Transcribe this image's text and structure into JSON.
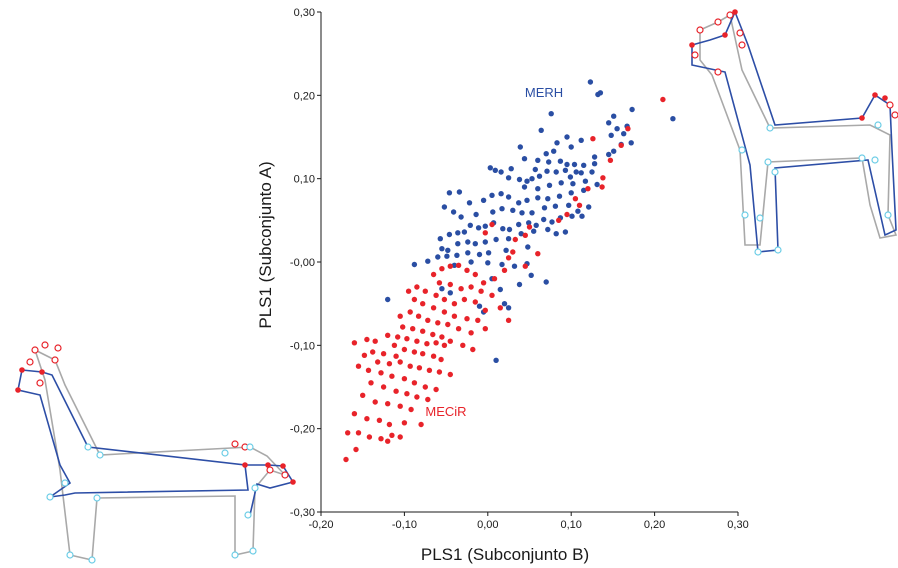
{
  "colors": {
    "merh": "#2a4ea3",
    "mecir": "#e8232a",
    "skeleton_gray": "#a9a9a9",
    "skeleton_blue": "#2d4ea6",
    "landmark_cyan": "#6ccde6"
  },
  "chart_data": {
    "type": "scatter",
    "xlabel": "PLS1 (Subconjunto B)",
    "ylabel": "PLS1 (Subconjunto A)",
    "xlim": [
      -0.2,
      0.3
    ],
    "ylim": [
      -0.3,
      0.3
    ],
    "x_ticks": [
      -0.2,
      -0.1,
      0.0,
      0.1,
      0.2,
      0.3
    ],
    "y_ticks": [
      -0.3,
      -0.2,
      -0.1,
      0.0,
      0.1,
      0.2,
      0.3
    ],
    "x_tick_labels": [
      "-0,20",
      "-0,10",
      "0,00",
      "0,10",
      "0,20",
      "0,30"
    ],
    "y_tick_labels": [
      "-0,30",
      "-0,20",
      "-0,10",
      "-0,00",
      "0,10",
      "0,20",
      "0,30"
    ],
    "grid": false,
    "annotations": [
      {
        "text": "MERH",
        "x": 0.067,
        "y": 0.202,
        "series": "MERH"
      },
      {
        "text": "MECiR",
        "x": -0.05,
        "y": -0.171,
        "series": "MECiR"
      }
    ],
    "series": [
      {
        "name": "MERH",
        "color": "#2a4ea3",
        "points": [
          [
            0.123,
            0.216
          ],
          [
            0.135,
            0.203
          ],
          [
            0.132,
            0.201
          ],
          [
            0.076,
            0.178
          ],
          [
            0.064,
            0.158
          ],
          [
            0.173,
            0.183
          ],
          [
            0.222,
            0.172
          ],
          [
            0.151,
            0.175
          ],
          [
            0.145,
            0.167
          ],
          [
            0.167,
            0.163
          ],
          [
            0.155,
            0.16
          ],
          [
            0.163,
            0.154
          ],
          [
            0.148,
            0.152
          ],
          [
            0.172,
            0.143
          ],
          [
            0.16,
            0.141
          ],
          [
            0.151,
            0.133
          ],
          [
            0.145,
            0.129
          ],
          [
            0.128,
            0.126
          ],
          [
            0.112,
            0.146
          ],
          [
            0.1,
            0.138
          ],
          [
            0.095,
            0.15
          ],
          [
            0.083,
            0.143
          ],
          [
            0.079,
            0.133
          ],
          [
            0.07,
            0.13
          ],
          [
            0.039,
            0.138
          ],
          [
            0.044,
            0.124
          ],
          [
            0.06,
            0.122
          ],
          [
            0.057,
            0.111
          ],
          [
            0.073,
            0.12
          ],
          [
            0.087,
            0.121
          ],
          [
            0.095,
            0.117
          ],
          [
            0.104,
            0.117
          ],
          [
            0.115,
            0.116
          ],
          [
            0.128,
            0.118
          ],
          [
            0.125,
            0.108
          ],
          [
            0.112,
            0.107
          ],
          [
            0.106,
            0.108
          ],
          [
            0.099,
            0.102
          ],
          [
            0.093,
            0.11
          ],
          [
            0.082,
            0.108
          ],
          [
            0.071,
            0.109
          ],
          [
            0.062,
            0.103
          ],
          [
            0.053,
            0.1
          ],
          [
            0.047,
            0.097
          ],
          [
            0.038,
            0.099
          ],
          [
            0.025,
            0.101
          ],
          [
            0.016,
            0.108
          ],
          [
            0.009,
            0.11
          ],
          [
            0.003,
            0.113
          ],
          [
            0.028,
            0.112
          ],
          [
            0.044,
            0.09
          ],
          [
            0.06,
            0.088
          ],
          [
            0.074,
            0.092
          ],
          [
            0.088,
            0.095
          ],
          [
            0.102,
            0.094
          ],
          [
            0.117,
            0.097
          ],
          [
            0.131,
            0.093
          ],
          [
            0.115,
            0.086
          ],
          [
            0.1,
            0.083
          ],
          [
            0.086,
            0.079
          ],
          [
            0.072,
            0.076
          ],
          [
            0.06,
            0.077
          ],
          [
            0.047,
            0.074
          ],
          [
            0.037,
            0.071
          ],
          [
            0.025,
            0.078
          ],
          [
            0.016,
            0.082
          ],
          [
            0.005,
            0.08
          ],
          [
            -0.005,
            0.074
          ],
          [
            -0.022,
            0.071
          ],
          [
            -0.034,
            0.084
          ],
          [
            -0.046,
            0.083
          ],
          [
            -0.052,
            0.066
          ],
          [
            -0.041,
            0.06
          ],
          [
            -0.032,
            0.054
          ],
          [
            -0.014,
            0.057
          ],
          [
            0.006,
            0.06
          ],
          [
            0.017,
            0.064
          ],
          [
            0.03,
            0.062
          ],
          [
            0.041,
            0.059
          ],
          [
            0.053,
            0.059
          ],
          [
            0.068,
            0.065
          ],
          [
            0.081,
            0.067
          ],
          [
            0.097,
            0.068
          ],
          [
            0.108,
            0.061
          ],
          [
            0.121,
            0.066
          ],
          [
            0.113,
            0.055
          ],
          [
            0.101,
            0.055
          ],
          [
            0.087,
            0.053
          ],
          [
            0.077,
            0.048
          ],
          [
            0.067,
            0.051
          ],
          [
            0.058,
            0.044
          ],
          [
            0.049,
            0.047
          ],
          [
            0.037,
            0.045
          ],
          [
            0.026,
            0.039
          ],
          [
            0.018,
            0.04
          ],
          [
            0.007,
            0.047
          ],
          [
            -0.003,
            0.043
          ],
          [
            -0.011,
            0.041
          ],
          [
            -0.021,
            0.044
          ],
          [
            -0.028,
            0.036
          ],
          [
            -0.036,
            0.035
          ],
          [
            -0.046,
            0.033
          ],
          [
            -0.057,
            0.028
          ],
          [
            -0.055,
            0.016
          ],
          [
            -0.048,
            0.014
          ],
          [
            -0.036,
            0.022
          ],
          [
            -0.024,
            0.024
          ],
          [
            -0.015,
            0.022
          ],
          [
            -0.003,
            0.024
          ],
          [
            0.01,
            0.027
          ],
          [
            0.025,
            0.028
          ],
          [
            0.04,
            0.034
          ],
          [
            0.055,
            0.037
          ],
          [
            0.072,
            0.039
          ],
          [
            0.082,
            0.034
          ],
          [
            0.093,
            0.036
          ],
          [
            0.048,
            0.018
          ],
          [
            0.022,
            0.014
          ],
          [
            0.001,
            0.011
          ],
          [
            -0.01,
            0.009
          ],
          [
            -0.024,
            0.011
          ],
          [
            -0.037,
            0.008
          ],
          [
            -0.049,
            0.007
          ],
          [
            -0.06,
            0.006
          ],
          [
            -0.072,
            0.001
          ],
          [
            -0.088,
            -0.003
          ],
          [
            -0.04,
            -0.004
          ],
          [
            -0.02,
            0.0
          ],
          [
            0.0,
            -0.001
          ],
          [
            0.017,
            -0.003
          ],
          [
            0.032,
            -0.005
          ],
          [
            0.047,
            -0.002
          ],
          [
            0.005,
            -0.02
          ],
          [
            0.015,
            -0.033
          ],
          [
            0.038,
            -0.027
          ],
          [
            0.052,
            -0.016
          ],
          [
            0.07,
            -0.024
          ],
          [
            0.02,
            -0.05
          ],
          [
            0.025,
            -0.055
          ],
          [
            -0.005,
            -0.06
          ],
          [
            -0.055,
            -0.032
          ],
          [
            -0.01,
            -0.053
          ],
          [
            -0.045,
            -0.037
          ],
          [
            0.01,
            -0.118
          ],
          [
            -0.12,
            -0.045
          ]
        ]
      },
      {
        "name": "MECiR",
        "color": "#e8232a",
        "points": [
          [
            0.21,
            0.195
          ],
          [
            0.168,
            0.16
          ],
          [
            0.16,
            0.14
          ],
          [
            0.126,
            0.148
          ],
          [
            0.147,
            0.122
          ],
          [
            0.138,
            0.101
          ],
          [
            0.137,
            0.09
          ],
          [
            0.12,
            0.088
          ],
          [
            0.11,
            0.068
          ],
          [
            0.105,
            0.076
          ],
          [
            0.095,
            0.057
          ],
          [
            0.085,
            0.05
          ],
          [
            0.05,
            0.042
          ],
          [
            0.045,
            0.032
          ],
          [
            0.033,
            0.027
          ],
          [
            0.03,
            0.012
          ],
          [
            0.005,
            0.045
          ],
          [
            -0.003,
            0.035
          ],
          [
            0.025,
            0.005
          ],
          [
            0.06,
            0.01
          ],
          [
            0.045,
            -0.005
          ],
          [
            0.02,
            -0.01
          ],
          [
            0.008,
            -0.02
          ],
          [
            -0.005,
            -0.025
          ],
          [
            -0.015,
            -0.015
          ],
          [
            -0.025,
            -0.01
          ],
          [
            -0.035,
            -0.004
          ],
          [
            -0.045,
            -0.005
          ],
          [
            -0.055,
            -0.008
          ],
          [
            -0.065,
            -0.015
          ],
          [
            -0.058,
            -0.025
          ],
          [
            -0.045,
            -0.027
          ],
          [
            -0.032,
            -0.032
          ],
          [
            -0.02,
            -0.03
          ],
          [
            -0.008,
            -0.035
          ],
          [
            0.005,
            -0.04
          ],
          [
            0.015,
            -0.055
          ],
          [
            0.025,
            -0.07
          ],
          [
            -0.003,
            -0.058
          ],
          [
            -0.015,
            -0.048
          ],
          [
            -0.028,
            -0.045
          ],
          [
            -0.04,
            -0.05
          ],
          [
            -0.052,
            -0.045
          ],
          [
            -0.062,
            -0.04
          ],
          [
            -0.075,
            -0.035
          ],
          [
            -0.085,
            -0.03
          ],
          [
            -0.095,
            -0.035
          ],
          [
            -0.088,
            -0.045
          ],
          [
            -0.078,
            -0.05
          ],
          [
            -0.065,
            -0.055
          ],
          [
            -0.052,
            -0.06
          ],
          [
            -0.04,
            -0.065
          ],
          [
            -0.025,
            -0.068
          ],
          [
            -0.012,
            -0.07
          ],
          [
            -0.003,
            -0.08
          ],
          [
            -0.02,
            -0.085
          ],
          [
            -0.035,
            -0.08
          ],
          [
            -0.048,
            -0.075
          ],
          [
            -0.06,
            -0.073
          ],
          [
            -0.072,
            -0.07
          ],
          [
            -0.083,
            -0.065
          ],
          [
            -0.093,
            -0.06
          ],
          [
            -0.105,
            -0.065
          ],
          [
            -0.102,
            -0.078
          ],
          [
            -0.09,
            -0.08
          ],
          [
            -0.078,
            -0.083
          ],
          [
            -0.066,
            -0.087
          ],
          [
            -0.055,
            -0.09
          ],
          [
            -0.045,
            -0.095
          ],
          [
            -0.03,
            -0.1
          ],
          [
            -0.018,
            -0.105
          ],
          [
            -0.052,
            -0.1
          ],
          [
            -0.062,
            -0.097
          ],
          [
            -0.073,
            -0.098
          ],
          [
            -0.085,
            -0.095
          ],
          [
            -0.097,
            -0.092
          ],
          [
            -0.108,
            -0.09
          ],
          [
            -0.12,
            -0.088
          ],
          [
            -0.135,
            -0.095
          ],
          [
            -0.145,
            -0.093
          ],
          [
            -0.16,
            -0.097
          ],
          [
            -0.112,
            -0.1
          ],
          [
            -0.1,
            -0.105
          ],
          [
            -0.088,
            -0.108
          ],
          [
            -0.078,
            -0.11
          ],
          [
            -0.065,
            -0.113
          ],
          [
            -0.056,
            -0.117
          ],
          [
            -0.11,
            -0.113
          ],
          [
            -0.125,
            -0.11
          ],
          [
            -0.138,
            -0.108
          ],
          [
            -0.148,
            -0.112
          ],
          [
            -0.132,
            -0.12
          ],
          [
            -0.118,
            -0.122
          ],
          [
            -0.105,
            -0.12
          ],
          [
            -0.093,
            -0.125
          ],
          [
            -0.082,
            -0.127
          ],
          [
            -0.07,
            -0.13
          ],
          [
            -0.058,
            -0.132
          ],
          [
            -0.045,
            -0.135
          ],
          [
            -0.155,
            -0.125
          ],
          [
            -0.143,
            -0.13
          ],
          [
            -0.128,
            -0.133
          ],
          [
            -0.115,
            -0.137
          ],
          [
            -0.1,
            -0.14
          ],
          [
            -0.088,
            -0.145
          ],
          [
            -0.075,
            -0.15
          ],
          [
            -0.062,
            -0.153
          ],
          [
            -0.14,
            -0.145
          ],
          [
            -0.125,
            -0.15
          ],
          [
            -0.11,
            -0.155
          ],
          [
            -0.097,
            -0.158
          ],
          [
            -0.085,
            -0.162
          ],
          [
            -0.072,
            -0.165
          ],
          [
            -0.15,
            -0.16
          ],
          [
            -0.135,
            -0.168
          ],
          [
            -0.12,
            -0.17
          ],
          [
            -0.105,
            -0.173
          ],
          [
            -0.092,
            -0.177
          ],
          [
            -0.16,
            -0.182
          ],
          [
            -0.145,
            -0.188
          ],
          [
            -0.13,
            -0.19
          ],
          [
            -0.118,
            -0.195
          ],
          [
            -0.1,
            -0.193
          ],
          [
            -0.155,
            -0.205
          ],
          [
            -0.142,
            -0.21
          ],
          [
            -0.128,
            -0.212
          ],
          [
            -0.115,
            -0.208
          ],
          [
            -0.168,
            -0.205
          ],
          [
            -0.158,
            -0.225
          ],
          [
            -0.17,
            -0.237
          ],
          [
            -0.12,
            -0.215
          ],
          [
            -0.105,
            -0.21
          ],
          [
            -0.08,
            -0.195
          ]
        ]
      }
    ]
  }
}
